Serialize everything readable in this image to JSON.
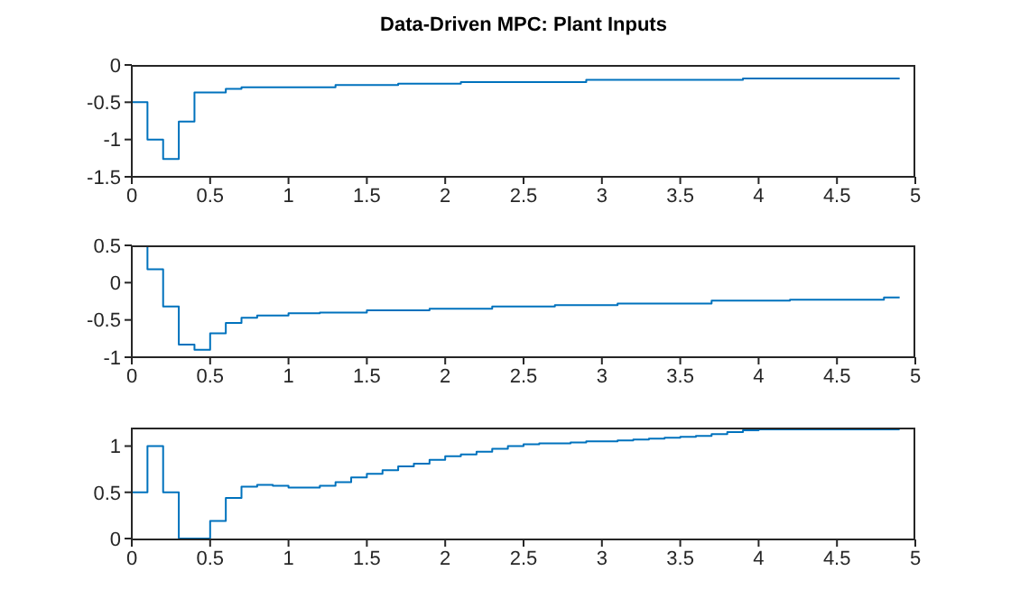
{
  "chart_data": [
    {
      "type": "step",
      "title": "Data-Driven MPC: Plant Inputs",
      "x": [
        0,
        0.1,
        0.2,
        0.3,
        0.4,
        0.5,
        0.6,
        0.7,
        0.8,
        0.9,
        1,
        1.1,
        1.2,
        1.3,
        1.4,
        1.5,
        1.6,
        1.7,
        1.8,
        1.9,
        2,
        2.1,
        2.2,
        2.3,
        2.4,
        2.5,
        2.6,
        2.7,
        2.8,
        2.9,
        3,
        3.1,
        3.2,
        3.3,
        3.4,
        3.5,
        3.6,
        3.7,
        3.8,
        3.9,
        4,
        4.1,
        4.2,
        4.3,
        4.4,
        4.5,
        4.6,
        4.7,
        4.8,
        4.9
      ],
      "series": [
        {
          "color": "#0072bd",
          "values": [
            -0.5,
            -1,
            -1.26,
            -0.76,
            -0.37,
            -0.37,
            -0.32,
            -0.3,
            -0.3,
            -0.3,
            -0.3,
            -0.3,
            -0.3,
            -0.27,
            -0.27,
            -0.27,
            -0.27,
            -0.25,
            -0.25,
            -0.25,
            -0.25,
            -0.23,
            -0.23,
            -0.23,
            -0.23,
            -0.23,
            -0.23,
            -0.23,
            -0.23,
            -0.2,
            -0.2,
            -0.2,
            -0.2,
            -0.2,
            -0.2,
            -0.2,
            -0.2,
            -0.2,
            -0.2,
            -0.18,
            -0.18,
            -0.18,
            -0.18,
            -0.18,
            -0.18,
            -0.18,
            -0.18,
            -0.18,
            -0.18,
            -0.18
          ]
        }
      ],
      "xlim": [
        0,
        5
      ],
      "xticks": [
        0,
        0.5,
        1,
        1.5,
        2,
        2.5,
        3,
        3.5,
        4,
        4.5,
        5
      ],
      "ylim": [
        -1.5,
        0
      ],
      "yticks": [
        -1.5,
        -1,
        -0.5,
        0
      ]
    },
    {
      "type": "step",
      "x": [
        0,
        0.1,
        0.2,
        0.3,
        0.4,
        0.5,
        0.6,
        0.7,
        0.8,
        0.9,
        1,
        1.1,
        1.2,
        1.3,
        1.4,
        1.5,
        1.6,
        1.7,
        1.8,
        1.9,
        2,
        2.1,
        2.2,
        2.3,
        2.4,
        2.5,
        2.6,
        2.7,
        2.8,
        2.9,
        3,
        3.1,
        3.2,
        3.3,
        3.4,
        3.5,
        3.6,
        3.7,
        3.8,
        3.9,
        4,
        4.1,
        4.2,
        4.3,
        4.4,
        4.5,
        4.6,
        4.7,
        4.8,
        4.9
      ],
      "series": [
        {
          "color": "#0072bd",
          "values": [
            0.5,
            0.18,
            -0.32,
            -0.83,
            -0.9,
            -0.68,
            -0.54,
            -0.47,
            -0.44,
            -0.44,
            -0.41,
            -0.41,
            -0.4,
            -0.4,
            -0.4,
            -0.37,
            -0.37,
            -0.37,
            -0.37,
            -0.35,
            -0.35,
            -0.35,
            -0.35,
            -0.32,
            -0.32,
            -0.32,
            -0.32,
            -0.3,
            -0.3,
            -0.3,
            -0.3,
            -0.28,
            -0.28,
            -0.28,
            -0.28,
            -0.28,
            -0.28,
            -0.24,
            -0.24,
            -0.24,
            -0.24,
            -0.24,
            -0.23,
            -0.23,
            -0.23,
            -0.23,
            -0.23,
            -0.23,
            -0.2,
            -0.2
          ]
        }
      ],
      "xlim": [
        0,
        5
      ],
      "xticks": [
        0,
        0.5,
        1,
        1.5,
        2,
        2.5,
        3,
        3.5,
        4,
        4.5,
        5
      ],
      "ylim": [
        -1,
        0.5
      ],
      "yticks": [
        -1,
        -0.5,
        0,
        0.5
      ]
    },
    {
      "type": "step",
      "x": [
        0,
        0.1,
        0.2,
        0.3,
        0.4,
        0.5,
        0.6,
        0.7,
        0.8,
        0.9,
        1,
        1.1,
        1.2,
        1.3,
        1.4,
        1.5,
        1.6,
        1.7,
        1.8,
        1.9,
        2,
        2.1,
        2.2,
        2.3,
        2.4,
        2.5,
        2.6,
        2.7,
        2.8,
        2.9,
        3,
        3.1,
        3.2,
        3.3,
        3.4,
        3.5,
        3.6,
        3.7,
        3.8,
        3.9,
        4,
        4.1,
        4.2,
        4.3,
        4.4,
        4.5,
        4.6,
        4.7,
        4.8,
        4.9
      ],
      "series": [
        {
          "color": "#0072bd",
          "values": [
            0.5,
            1,
            0.5,
            0,
            0,
            0.19,
            0.44,
            0.56,
            0.58,
            0.57,
            0.55,
            0.55,
            0.57,
            0.61,
            0.66,
            0.7,
            0.74,
            0.78,
            0.81,
            0.85,
            0.89,
            0.91,
            0.94,
            0.97,
            1,
            1.02,
            1.03,
            1.03,
            1.04,
            1.05,
            1.05,
            1.06,
            1.07,
            1.08,
            1.09,
            1.1,
            1.11,
            1.13,
            1.15,
            1.17,
            1.18,
            1.18,
            1.18,
            1.18,
            1.18,
            1.18,
            1.18,
            1.18,
            1.18,
            1.18
          ]
        }
      ],
      "xlim": [
        0,
        5
      ],
      "xticks": [
        0,
        0.5,
        1,
        1.5,
        2,
        2.5,
        3,
        3.5,
        4,
        4.5,
        5
      ],
      "ylim": [
        -0.01,
        1.2
      ],
      "yticks": [
        0,
        0.5,
        1
      ]
    }
  ]
}
